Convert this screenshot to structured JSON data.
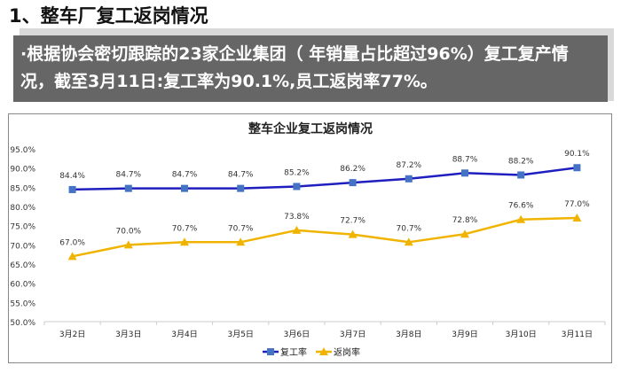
{
  "heading": "1、整车厂复工返岗情况",
  "summary": "·根据协会密切跟踪的23家企业集团（ 年销量占比超过96%）复工复产情况，截至3月11日:复工率为90.1%,员工返岗率77%。",
  "chart_data": {
    "type": "line",
    "title": "整车企业复工返岗情况",
    "categories": [
      "3月2日",
      "3月3日",
      "3月4日",
      "3月5日",
      "3月6日",
      "3月7日",
      "3月8日",
      "3月9日",
      "3月10日",
      "3月11日"
    ],
    "yticks": [
      "50.0%",
      "55.0%",
      "60.0%",
      "65.0%",
      "70.0%",
      "75.0%",
      "80.0%",
      "85.0%",
      "90.0%",
      "95.0%"
    ],
    "ylim": [
      50,
      95
    ],
    "legend_position": "bottom",
    "series": [
      {
        "name": "复工率",
        "color": "#1f1fbf",
        "marker_color": "#4472c4",
        "marker": "square",
        "values": [
          84.4,
          84.7,
          84.7,
          84.7,
          85.2,
          86.2,
          87.2,
          88.7,
          88.2,
          90.1
        ],
        "labels": [
          "84.4%",
          "84.7%",
          "84.7%",
          "84.7%",
          "85.2%",
          "86.2%",
          "87.2%",
          "88.7%",
          "88.2%",
          "90.1%"
        ]
      },
      {
        "name": "返岗率",
        "color": "#f0b400",
        "marker_color": "#f0b400",
        "marker": "triangle",
        "values": [
          67.0,
          70.0,
          70.7,
          70.7,
          73.8,
          72.7,
          70.7,
          72.8,
          76.6,
          77.0
        ],
        "labels": [
          "67.0%",
          "70.0%",
          "70.7%",
          "70.7%",
          "73.8%",
          "72.7%",
          "70.7%",
          "72.8%",
          "76.6%",
          "77.0%"
        ]
      }
    ]
  }
}
